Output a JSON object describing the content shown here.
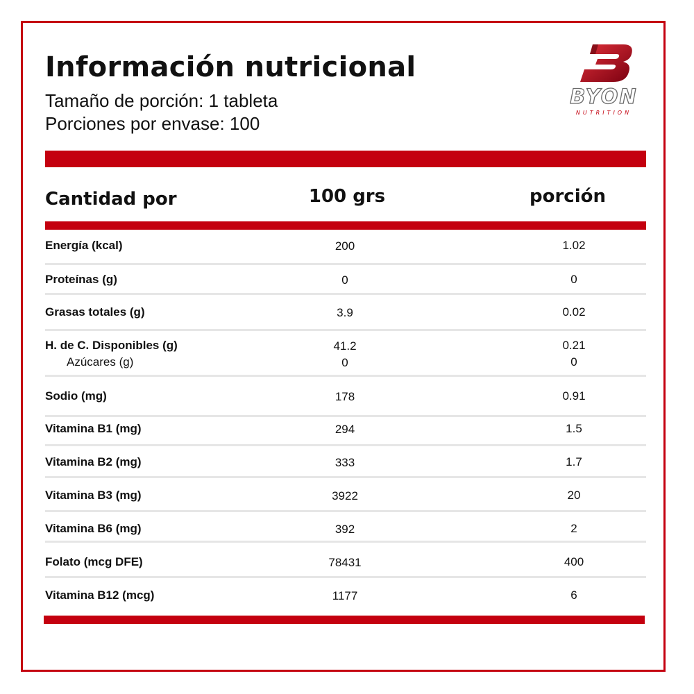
{
  "header": {
    "title": "Información nutricional",
    "serving_size": "Tamaño de porción: 1 tableta",
    "servings_per_container": "Porciones por envase: 100"
  },
  "logo": {
    "word": "BYON",
    "sub": "NUTRITION",
    "brand_color": "#c4000f"
  },
  "table": {
    "columns": {
      "label": "Cantidad por",
      "per_100": "100 grs",
      "per_serving": "porción"
    },
    "rows": [
      {
        "name": "Energía (kcal)",
        "per_100": "200",
        "per_serving": "1.02"
      },
      {
        "name": "Proteínas (g)",
        "per_100": "0",
        "per_serving": "0"
      },
      {
        "name": "Grasas totales (g)",
        "per_100": "3.9",
        "per_serving": "0.02"
      },
      {
        "name": "H. de C. Disponibles (g)",
        "per_100": "41.2",
        "per_serving": "0.21",
        "sub": {
          "name": "Azúcares (g)",
          "per_100": "0",
          "per_serving": "0"
        }
      },
      {
        "name": "Sodio (mg)",
        "per_100": "178",
        "per_serving": "0.91"
      },
      {
        "name": "Vitamina B1 (mg)",
        "per_100": "294",
        "per_serving": "1.5"
      },
      {
        "name": "Vitamina B2 (mg)",
        "per_100": "333",
        "per_serving": "1.7"
      },
      {
        "name": "Vitamina B3 (mg)",
        "per_100": "3922",
        "per_serving": "20"
      },
      {
        "name": "Vitamina B6 (mg)",
        "per_100": "392",
        "per_serving": "2"
      },
      {
        "name": "Folato (mcg DFE)",
        "per_100": "78431",
        "per_serving": "400"
      },
      {
        "name": "Vitamina B12 (mcg)",
        "per_100": "1177",
        "per_serving": "6"
      }
    ]
  }
}
